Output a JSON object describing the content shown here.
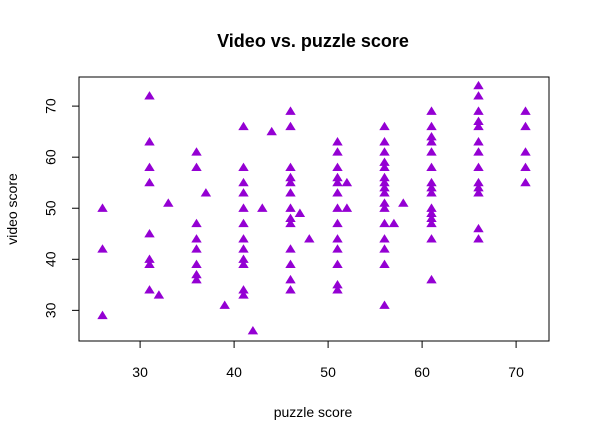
{
  "chart_data": {
    "type": "scatter",
    "title": "Video vs. puzzle score",
    "xlabel": "puzzle score",
    "ylabel": "video score",
    "xlim": [
      23.5,
      73.5
    ],
    "ylim": [
      24.0,
      75.7
    ],
    "xticks": [
      30,
      40,
      50,
      60,
      70
    ],
    "yticks": [
      30,
      40,
      50,
      60,
      70
    ],
    "xtick_labels": [
      "30",
      "40",
      "50",
      "60",
      "70"
    ],
    "ytick_labels": [
      "30",
      "40",
      "50",
      "60",
      "70"
    ],
    "marker": "filled-triangle",
    "marker_color": "#9400D3",
    "grid": false,
    "points": [
      {
        "x": 26,
        "y": 50
      },
      {
        "x": 26,
        "y": 42
      },
      {
        "x": 26,
        "y": 29
      },
      {
        "x": 31,
        "y": 72
      },
      {
        "x": 31,
        "y": 63
      },
      {
        "x": 31,
        "y": 58
      },
      {
        "x": 31,
        "y": 55
      },
      {
        "x": 31,
        "y": 45
      },
      {
        "x": 31,
        "y": 40
      },
      {
        "x": 31,
        "y": 39
      },
      {
        "x": 31,
        "y": 34
      },
      {
        "x": 32,
        "y": 33
      },
      {
        "x": 33,
        "y": 51
      },
      {
        "x": 36,
        "y": 61
      },
      {
        "x": 36,
        "y": 58
      },
      {
        "x": 36,
        "y": 47
      },
      {
        "x": 36,
        "y": 44
      },
      {
        "x": 36,
        "y": 42
      },
      {
        "x": 36,
        "y": 39
      },
      {
        "x": 36,
        "y": 37
      },
      {
        "x": 36,
        "y": 36
      },
      {
        "x": 37,
        "y": 53
      },
      {
        "x": 39,
        "y": 31
      },
      {
        "x": 41,
        "y": 66
      },
      {
        "x": 41,
        "y": 58
      },
      {
        "x": 41,
        "y": 55
      },
      {
        "x": 41,
        "y": 53
      },
      {
        "x": 41,
        "y": 50
      },
      {
        "x": 41,
        "y": 47
      },
      {
        "x": 41,
        "y": 44
      },
      {
        "x": 41,
        "y": 42
      },
      {
        "x": 41,
        "y": 40
      },
      {
        "x": 41,
        "y": 39
      },
      {
        "x": 41,
        "y": 34
      },
      {
        "x": 41,
        "y": 33
      },
      {
        "x": 42,
        "y": 26
      },
      {
        "x": 43,
        "y": 50
      },
      {
        "x": 44,
        "y": 65
      },
      {
        "x": 46,
        "y": 69
      },
      {
        "x": 46,
        "y": 66
      },
      {
        "x": 46,
        "y": 58
      },
      {
        "x": 46,
        "y": 56
      },
      {
        "x": 46,
        "y": 55
      },
      {
        "x": 46,
        "y": 53
      },
      {
        "x": 46,
        "y": 50
      },
      {
        "x": 46,
        "y": 48
      },
      {
        "x": 46,
        "y": 47
      },
      {
        "x": 46,
        "y": 42
      },
      {
        "x": 46,
        "y": 39
      },
      {
        "x": 46,
        "y": 36
      },
      {
        "x": 46,
        "y": 34
      },
      {
        "x": 47,
        "y": 49
      },
      {
        "x": 48,
        "y": 44
      },
      {
        "x": 51,
        "y": 63
      },
      {
        "x": 51,
        "y": 61
      },
      {
        "x": 51,
        "y": 58
      },
      {
        "x": 51,
        "y": 56
      },
      {
        "x": 51,
        "y": 55
      },
      {
        "x": 51,
        "y": 53
      },
      {
        "x": 51,
        "y": 50
      },
      {
        "x": 51,
        "y": 47
      },
      {
        "x": 51,
        "y": 44
      },
      {
        "x": 51,
        "y": 42
      },
      {
        "x": 51,
        "y": 39
      },
      {
        "x": 51,
        "y": 35
      },
      {
        "x": 51,
        "y": 34
      },
      {
        "x": 52,
        "y": 55
      },
      {
        "x": 52,
        "y": 50
      },
      {
        "x": 56,
        "y": 66
      },
      {
        "x": 56,
        "y": 63
      },
      {
        "x": 56,
        "y": 61
      },
      {
        "x": 56,
        "y": 59
      },
      {
        "x": 56,
        "y": 58
      },
      {
        "x": 56,
        "y": 56
      },
      {
        "x": 56,
        "y": 55
      },
      {
        "x": 56,
        "y": 54
      },
      {
        "x": 56,
        "y": 53
      },
      {
        "x": 56,
        "y": 51
      },
      {
        "x": 56,
        "y": 50
      },
      {
        "x": 56,
        "y": 47
      },
      {
        "x": 56,
        "y": 44
      },
      {
        "x": 56,
        "y": 42
      },
      {
        "x": 56,
        "y": 39
      },
      {
        "x": 56,
        "y": 31
      },
      {
        "x": 57,
        "y": 47
      },
      {
        "x": 58,
        "y": 51
      },
      {
        "x": 61,
        "y": 69
      },
      {
        "x": 61,
        "y": 66
      },
      {
        "x": 61,
        "y": 64
      },
      {
        "x": 61,
        "y": 63
      },
      {
        "x": 61,
        "y": 61
      },
      {
        "x": 61,
        "y": 58
      },
      {
        "x": 61,
        "y": 55
      },
      {
        "x": 61,
        "y": 54
      },
      {
        "x": 61,
        "y": 53
      },
      {
        "x": 61,
        "y": 50
      },
      {
        "x": 61,
        "y": 49
      },
      {
        "x": 61,
        "y": 48
      },
      {
        "x": 61,
        "y": 47
      },
      {
        "x": 61,
        "y": 44
      },
      {
        "x": 61,
        "y": 36
      },
      {
        "x": 66,
        "y": 74
      },
      {
        "x": 66,
        "y": 72
      },
      {
        "x": 66,
        "y": 69
      },
      {
        "x": 66,
        "y": 67
      },
      {
        "x": 66,
        "y": 66
      },
      {
        "x": 66,
        "y": 63
      },
      {
        "x": 66,
        "y": 61
      },
      {
        "x": 66,
        "y": 58
      },
      {
        "x": 66,
        "y": 55
      },
      {
        "x": 66,
        "y": 54
      },
      {
        "x": 66,
        "y": 53
      },
      {
        "x": 66,
        "y": 46
      },
      {
        "x": 66,
        "y": 44
      },
      {
        "x": 71,
        "y": 69
      },
      {
        "x": 71,
        "y": 66
      },
      {
        "x": 71,
        "y": 61
      },
      {
        "x": 71,
        "y": 58
      },
      {
        "x": 71,
        "y": 55
      }
    ]
  }
}
